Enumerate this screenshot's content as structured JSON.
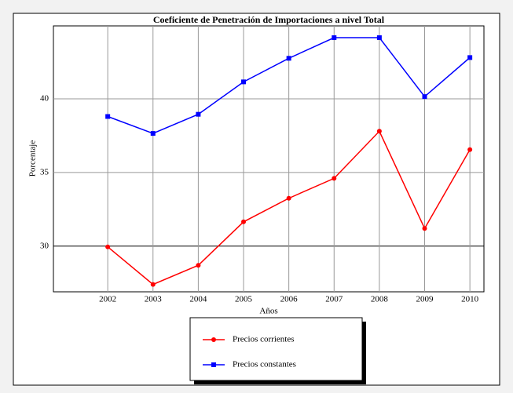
{
  "chart_data": {
    "type": "line",
    "title": "Coeficiente de Penetración de Importaciones a nivel Total",
    "x_label": "Años",
    "y_label": "Porcentaje",
    "x": [
      2002,
      2003,
      2004,
      2005,
      2006,
      2007,
      2008,
      2009,
      2010
    ],
    "series": [
      {
        "name": "Precios corrientes",
        "color": "#ff0000",
        "marker": "circle",
        "values": [
          29.95,
          27.4,
          28.7,
          31.65,
          33.25,
          34.6,
          37.8,
          31.2,
          36.55
        ]
      },
      {
        "name": "Precios constantes",
        "color": "#0000ff",
        "marker": "square",
        "values": [
          38.8,
          37.65,
          38.95,
          41.15,
          42.75,
          44.15,
          44.15,
          40.15,
          42.8
        ]
      }
    ],
    "xlim": [
      2000.8,
      2010.31
    ],
    "ylim": [
      26.9,
      44.95
    ],
    "xticks": [
      2002,
      2003,
      2004,
      2005,
      2006,
      2007,
      2008,
      2009,
      2010
    ],
    "yticks": [
      30,
      35,
      40
    ],
    "grid": true,
    "legend": "bottom"
  }
}
